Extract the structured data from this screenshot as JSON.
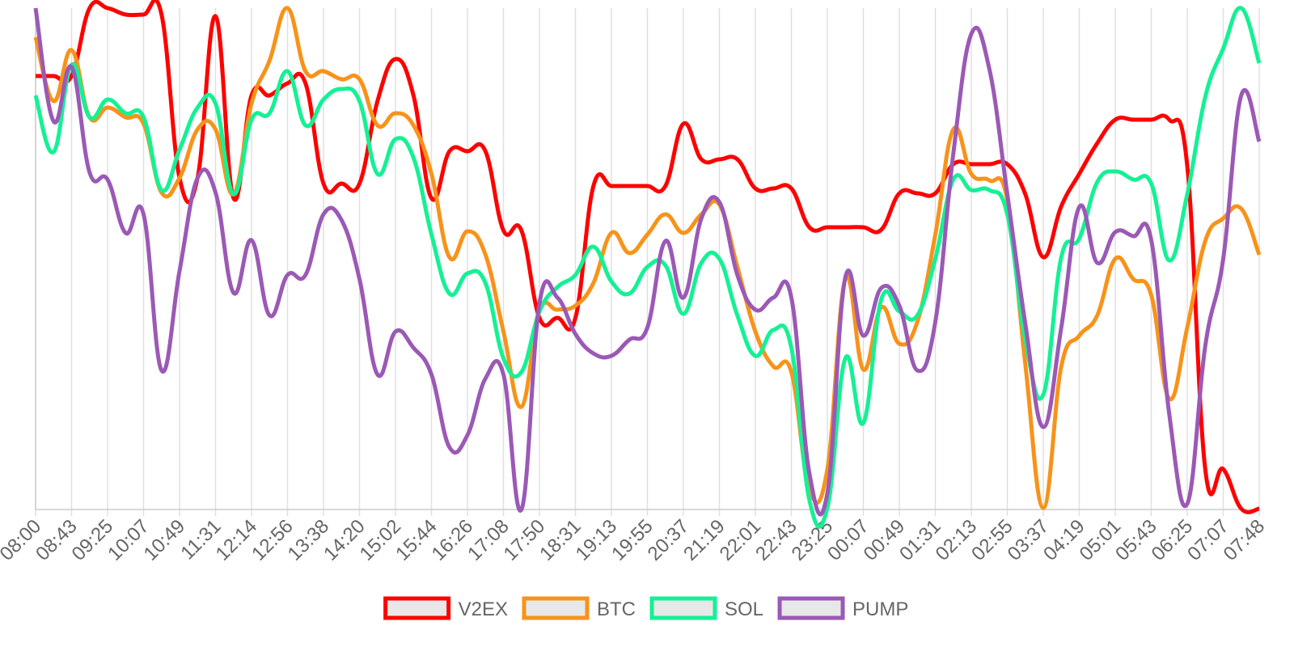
{
  "chart_data": {
    "type": "line",
    "categories": [
      "08:00",
      null,
      "08:43",
      null,
      "09:25",
      null,
      "10:07",
      null,
      "10:49",
      null,
      "11:31",
      null,
      "12:14",
      null,
      "12:56",
      null,
      "13:38",
      null,
      "14:20",
      null,
      "15:02",
      null,
      "15:44",
      null,
      "16:26",
      null,
      "17:08",
      null,
      "17:50",
      null,
      "18:31",
      null,
      "19:13",
      null,
      "19:55",
      null,
      "20:37",
      null,
      "21:19",
      null,
      "22:01",
      null,
      "22:43",
      null,
      "23:25",
      null,
      "00:07",
      null,
      "00:49",
      null,
      "01:31",
      null,
      "02:13",
      null,
      "02:55",
      null,
      "03:37",
      null,
      "04:19",
      null,
      "05:01",
      null,
      "05:43",
      null,
      "06:25",
      null,
      "07:07",
      null,
      "07:48"
    ],
    "series": [
      {
        "name": "V2EX",
        "color": "#ff0000",
        "values": [
          536,
          536,
          536,
          620,
          620,
          612,
          612,
          612,
          410,
          410,
          610,
          385,
          512,
          512,
          527,
          527,
          403,
          403,
          403,
          505,
          557,
          512,
          385,
          443,
          443,
          443,
          345,
          345,
          237,
          237,
          237,
          400,
          400,
          400,
          400,
          400,
          477,
          433,
          433,
          433,
          397,
          397,
          397,
          349,
          349,
          349,
          349,
          346,
          391,
          391,
          391,
          427,
          427,
          427,
          427,
          390,
          312,
          375,
          415,
          453,
          482,
          482,
          482,
          482,
          425,
          50,
          50,
          1,
          1
        ]
      },
      {
        "name": "BTC",
        "color": "#f7931a",
        "values": [
          584,
          505,
          568,
          485,
          497,
          485,
          477,
          392,
          410,
          470,
          470,
          390,
          502,
          555,
          620,
          542,
          542,
          532,
          532,
          475,
          490,
          475,
          415,
          312,
          344,
          315,
          220,
          127,
          245,
          247,
          252,
          280,
          342,
          317,
          340,
          365,
          342,
          365,
          377,
          300,
          220,
          177,
          170,
          25,
          50,
          285,
          173,
          250,
          205,
          232,
          340,
          470,
          415,
          407,
          383,
          180,
          2,
          177,
          215,
          240,
          310,
          285,
          265,
          137,
          225,
          332,
          360,
          372,
          315
        ]
      },
      {
        "name": "SOL",
        "color": "#14f195",
        "values": [
          512,
          442,
          550,
          485,
          507,
          490,
          485,
          395,
          445,
          497,
          502,
          390,
          482,
          490,
          542,
          475,
          507,
          520,
          505,
          415,
          458,
          435,
          340,
          267,
          292,
          280,
          187,
          170,
          245,
          275,
          290,
          325,
          282,
          267,
          300,
          302,
          242,
          305,
          310,
          240,
          190,
          222,
          200,
          12,
          2,
          187,
          107,
          260,
          245,
          240,
          310,
          408,
          395,
          395,
          365,
          210,
          142,
          312,
          335,
          405,
          418,
          408,
          403,
          308,
          390,
          510,
          570,
          620,
          552
        ]
      },
      {
        "name": "PUMP",
        "color": "#9b59b6",
        "values": [
          620,
          480,
          547,
          417,
          408,
          342,
          365,
          172,
          295,
          410,
          392,
          268,
          333,
          240,
          290,
          290,
          365,
          358,
          285,
          167,
          220,
          200,
          167,
          77,
          92,
          162,
          167,
          0,
          255,
          262,
          217,
          193,
          190,
          210,
          225,
          332,
          262,
          360,
          380,
          290,
          247,
          262,
          262,
          45,
          20,
          287,
          215,
          274,
          252,
          172,
          232,
          440,
          588,
          545,
          390,
          230,
          102,
          225,
          374,
          305,
          343,
          338,
          333,
          118,
          7,
          202,
          310,
          512,
          455
        ]
      }
    ],
    "ylim": [
      0,
      620
    ],
    "grid": true,
    "legend": "bottom"
  }
}
